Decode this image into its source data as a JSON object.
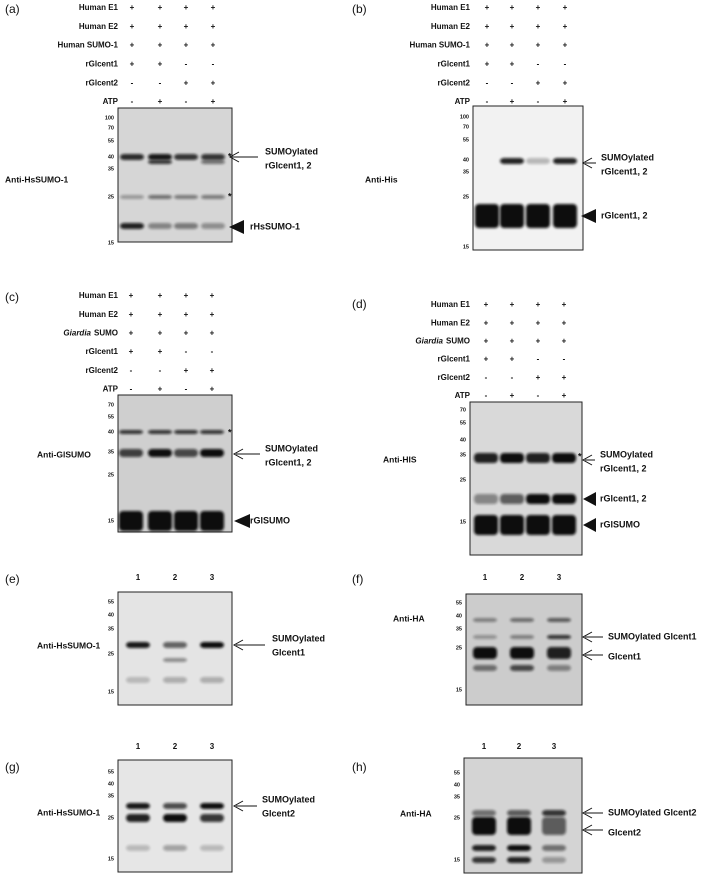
{
  "panels": [
    {
      "label": "(a)",
      "antibody": "Anti-HsSUMO-1",
      "rows": [
        {
          "name": "Human E1",
          "signs": [
            "+",
            "+",
            "+",
            "+"
          ]
        },
        {
          "name": "Human E2",
          "signs": [
            "+",
            "+",
            "+",
            "+"
          ]
        },
        {
          "name": "Human SUMO-1",
          "signs": [
            "+",
            "+",
            "+",
            "+"
          ]
        },
        {
          "name": "rGlcent1",
          "signs": [
            "+",
            "+",
            "-",
            "-"
          ]
        },
        {
          "name": "rGlcent2",
          "signs": [
            "-",
            "-",
            "+",
            "+"
          ]
        },
        {
          "name": "ATP",
          "signs": [
            "-",
            "+",
            "-",
            "+"
          ]
        }
      ],
      "markers": [
        "100",
        "70",
        "55",
        "40",
        "35",
        "25",
        "15"
      ],
      "annotations": [
        {
          "lines": [
            "SUMOylated",
            "rGlcent1, 2"
          ]
        },
        {
          "lines": [
            "rHsSUMO-1"
          ]
        }
      ],
      "stars": [
        "*",
        "*"
      ]
    },
    {
      "label": "(b)",
      "antibody": "Anti-His",
      "rows": [
        {
          "name": "Human E1",
          "signs": [
            "+",
            "+",
            "+",
            "+"
          ]
        },
        {
          "name": "Human E2",
          "signs": [
            "+",
            "+",
            "+",
            "+"
          ]
        },
        {
          "name": "Human SUMO-1",
          "signs": [
            "+",
            "+",
            "+",
            "+"
          ]
        },
        {
          "name": "rGlcent1",
          "signs": [
            "+",
            "+",
            "-",
            "-"
          ]
        },
        {
          "name": "rGlcent2",
          "signs": [
            "-",
            "-",
            "+",
            "+"
          ]
        },
        {
          "name": "ATP",
          "signs": [
            "-",
            "+",
            "-",
            "+"
          ]
        }
      ],
      "markers": [
        "100",
        "70",
        "55",
        "40",
        "35",
        "25",
        "15"
      ],
      "annotations": [
        {
          "lines": [
            "SUMOylated",
            "rGlcent1, 2"
          ]
        },
        {
          "lines": [
            "rGlcent1, 2"
          ]
        }
      ],
      "stars": []
    },
    {
      "label": "(c)",
      "antibody": "Anti-GlSUMO",
      "rows": [
        {
          "name": "Human E1",
          "signs": [
            "+",
            "+",
            "+",
            "+"
          ]
        },
        {
          "name": "Human E2",
          "signs": [
            "+",
            "+",
            "+",
            "+"
          ]
        },
        {
          "italic": "Giardia",
          "name": "SUMO",
          "signs": [
            "+",
            "+",
            "+",
            "+"
          ]
        },
        {
          "name": "rGlcent1",
          "signs": [
            "+",
            "+",
            "-",
            "-"
          ]
        },
        {
          "name": "rGlcent2",
          "signs": [
            "-",
            "-",
            "+",
            "+"
          ]
        },
        {
          "name": "ATP",
          "signs": [
            "-",
            "+",
            "-",
            "+"
          ]
        }
      ],
      "markers": [
        "70",
        "55",
        "40",
        "35",
        "25",
        "15"
      ],
      "annotations": [
        {
          "lines": [
            "SUMOylated",
            "rGlcent1, 2"
          ]
        },
        {
          "lines": [
            "rGlSUMO"
          ]
        }
      ],
      "stars": [
        "*"
      ]
    },
    {
      "label": "(d)",
      "antibody": "Anti-HIS",
      "rows": [
        {
          "name": "Human E1",
          "signs": [
            "+",
            "+",
            "+",
            "+"
          ]
        },
        {
          "name": "Human E2",
          "signs": [
            "+",
            "+",
            "+",
            "+"
          ]
        },
        {
          "italic": "Giardia",
          "name": "SUMO",
          "signs": [
            "+",
            "+",
            "+",
            "+"
          ]
        },
        {
          "name": "rGlcent1",
          "signs": [
            "+",
            "+",
            "-",
            "-"
          ]
        },
        {
          "name": "rGlcent2",
          "signs": [
            "-",
            "-",
            "+",
            "+"
          ]
        },
        {
          "name": "ATP",
          "signs": [
            "-",
            "+",
            "-",
            "+"
          ]
        }
      ],
      "markers": [
        "70",
        "55",
        "40",
        "35",
        "25",
        "15"
      ],
      "annotations": [
        {
          "lines": [
            "SUMOylated",
            "rGlcent1, 2"
          ]
        },
        {
          "lines": [
            "rGlcent1, 2"
          ]
        },
        {
          "lines": [
            "rGlSUMO"
          ]
        }
      ],
      "stars": [
        "*"
      ]
    },
    {
      "label": "(e)",
      "antibody": "Anti-HsSUMO-1",
      "lanes": [
        "1",
        "2",
        "3"
      ],
      "rows": [],
      "markers": [
        "55",
        "40",
        "35",
        "25",
        "15"
      ],
      "annotations": [
        {
          "lines": [
            "SUMOylated",
            "Glcent1"
          ]
        }
      ],
      "stars": []
    },
    {
      "label": "(f)",
      "antibody": "Anti-HA",
      "lanes": [
        "1",
        "2",
        "3"
      ],
      "rows": [],
      "markers": [
        "55",
        "40",
        "35",
        "25",
        "15"
      ],
      "annotations": [
        {
          "lines": [
            "SUMOylated Glcent1"
          ]
        },
        {
          "lines": [
            "Glcent1"
          ]
        }
      ],
      "stars": []
    },
    {
      "label": "(g)",
      "antibody": "Anti-HsSUMO-1",
      "lanes": [
        "1",
        "2",
        "3"
      ],
      "rows": [],
      "markers": [
        "55",
        "40",
        "35",
        "25",
        "15"
      ],
      "annotations": [
        {
          "lines": [
            "SUMOylated",
            "Glcent2"
          ]
        }
      ],
      "stars": []
    },
    {
      "label": "(h)",
      "antibody": "Anti-HA",
      "lanes": [
        "1",
        "2",
        "3"
      ],
      "rows": [],
      "markers": [
        "55",
        "40",
        "35",
        "25",
        "15"
      ],
      "annotations": [
        {
          "lines": [
            "SUMOylated Glcent2"
          ]
        },
        {
          "lines": [
            "Glcent2"
          ]
        }
      ],
      "stars": []
    }
  ]
}
